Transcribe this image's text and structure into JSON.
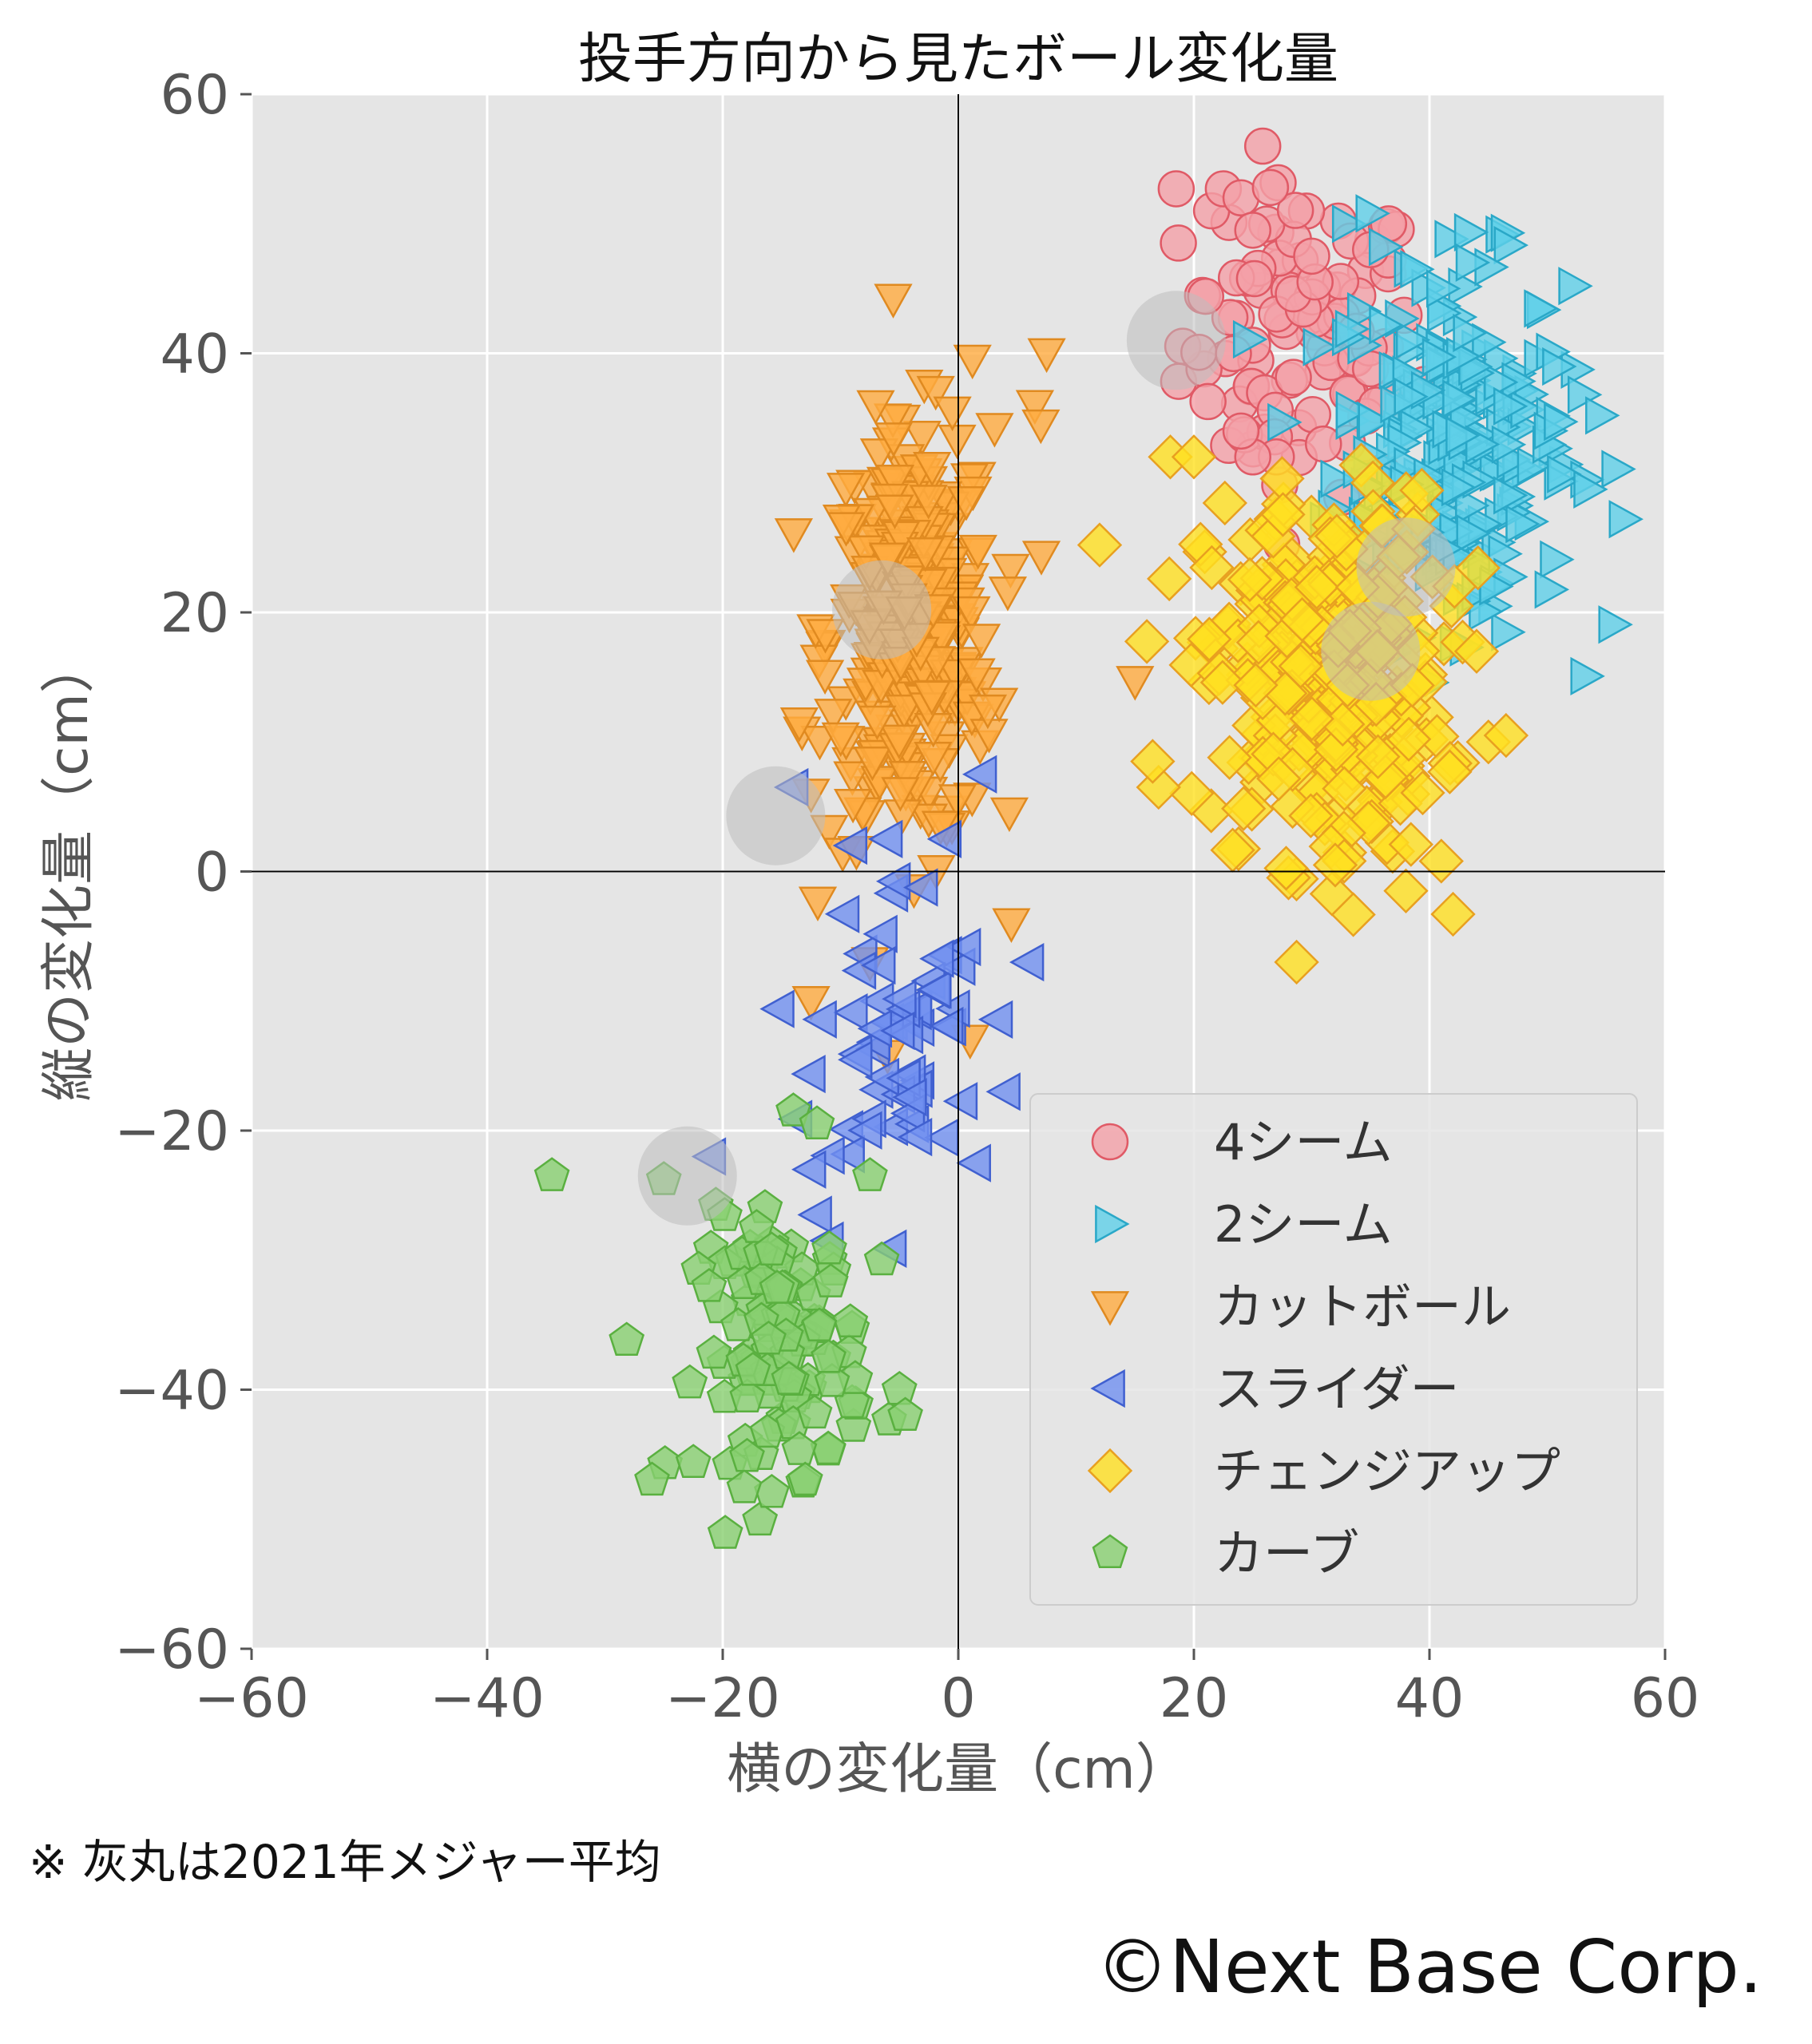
{
  "chart_data": {
    "type": "scatter",
    "title": "投手方向から見たボール変化量",
    "xlabel": "横の変化量（cm）",
    "ylabel": "縦の変化量（cm）",
    "xlim": [
      -60,
      60
    ],
    "ylim": [
      -60,
      60
    ],
    "xticks": [
      -60,
      -40,
      -20,
      0,
      20,
      40,
      60
    ],
    "yticks": [
      60,
      40,
      20,
      0,
      -20,
      -40,
      -60
    ],
    "xtick_labels": [
      "−60",
      "−40",
      "−20",
      "0",
      "20",
      "40",
      "60"
    ],
    "ytick_labels": [
      "60",
      "40",
      "20",
      "0",
      "−20",
      "−40",
      "−60"
    ],
    "grid": true,
    "background": "#e5e5e5",
    "legend_position": "lower-right",
    "series": [
      {
        "name": "4シーム",
        "marker": "circle",
        "fill": "#f4a0a8",
        "stroke": "#e05a66",
        "n": 90,
        "center": [
          29,
          41
        ],
        "spread": [
          5,
          6
        ],
        "points": [
          [
            18.5,
            52.7
          ],
          [
            21.5,
            51
          ],
          [
            22.5,
            52.7
          ],
          [
            24,
            52
          ],
          [
            26.5,
            52.8
          ],
          [
            25,
            49.5
          ],
          [
            30,
            47.5
          ],
          [
            36.5,
            47.2
          ],
          [
            35,
            48
          ],
          [
            21,
            44.4
          ],
          [
            31,
            33
          ],
          [
            35.5,
            36
          ],
          [
            36,
            30.8
          ],
          [
            27,
            32
          ],
          [
            25,
            32
          ],
          [
            24,
            34
          ]
        ]
      },
      {
        "name": "2シーム",
        "marker": "triangle-right",
        "fill": "#5fd0e8",
        "stroke": "#2aa8c8",
        "n": 230,
        "center": [
          42,
          33
        ],
        "spread": [
          5,
          7
        ],
        "points": [
          [
            33,
            50
          ],
          [
            35,
            50.8
          ],
          [
            43.5,
            47
          ],
          [
            41,
            45
          ],
          [
            53,
            36.8
          ],
          [
            54.5,
            35.2
          ],
          [
            53.5,
            29.5
          ],
          [
            56.5,
            27.2
          ],
          [
            44,
            21.5
          ],
          [
            45.5,
            22
          ],
          [
            43,
            17.3
          ]
        ]
      },
      {
        "name": "カットボール",
        "marker": "triangle-down",
        "fill": "#ffab40",
        "stroke": "#e08a20",
        "n": 330,
        "center": [
          -4,
          18
        ],
        "spread": [
          3.5,
          8
        ],
        "points": [
          [
            1.2,
            39.5
          ],
          [
            7.5,
            40
          ],
          [
            -0.5,
            35.5
          ],
          [
            6.5,
            36
          ],
          [
            7,
            34.5
          ],
          [
            -5.5,
            33.5
          ],
          [
            -13.5,
            11.5
          ],
          [
            -12.5,
            6
          ],
          [
            2.5,
            12.5
          ],
          [
            15,
            14.7
          ],
          [
            4.5,
            -4
          ],
          [
            -12.5,
            -10
          ],
          [
            -7.5,
            -7
          ],
          [
            1,
            -13
          ]
        ]
      },
      {
        "name": "スライダー",
        "marker": "triangle-left",
        "fill": "#7090f0",
        "stroke": "#4060d0",
        "n": 60,
        "center": [
          -5,
          -12
        ],
        "spread": [
          3.5,
          6
        ],
        "points": [
          [
            -14,
            6.5
          ],
          [
            -9,
            2
          ],
          [
            -6,
            2.5
          ],
          [
            -1,
            2.5
          ],
          [
            2,
            7.5
          ],
          [
            6,
            -7
          ],
          [
            4,
            -17
          ],
          [
            1.5,
            -22.5
          ],
          [
            -21,
            -22
          ],
          [
            -12,
            -26.5
          ],
          [
            -11,
            -28.5
          ],
          [
            -12.5,
            -23
          ],
          [
            -3.5,
            -20.5
          ]
        ]
      },
      {
        "name": "チェンジアップ",
        "marker": "diamond",
        "fill": "#ffe020",
        "stroke": "#e8a020",
        "n": 300,
        "center": [
          31,
          15
        ],
        "spread": [
          5,
          7
        ],
        "points": [
          [
            12,
            25.2
          ],
          [
            18,
            32
          ],
          [
            20,
            32
          ],
          [
            17,
            6.5
          ],
          [
            16.5,
            8.5
          ],
          [
            32,
            0.5
          ],
          [
            38,
            -1.5
          ],
          [
            42,
            -3.3
          ],
          [
            41,
            0.8
          ],
          [
            45,
            10
          ],
          [
            46.5,
            10.5
          ],
          [
            44,
            17
          ]
        ]
      },
      {
        "name": "カーブ",
        "marker": "pentagon",
        "fill": "#88d070",
        "stroke": "#5ab040",
        "n": 110,
        "center": [
          -15,
          -37
        ],
        "spread": [
          3.5,
          5
        ],
        "points": [
          [
            -34.5,
            -23.5
          ],
          [
            -25,
            -23.8
          ],
          [
            -14,
            -18.5
          ],
          [
            -12,
            -19.5
          ],
          [
            -7.5,
            -23.5
          ],
          [
            -6.5,
            -30
          ],
          [
            -26,
            -47
          ],
          [
            -13,
            -47
          ],
          [
            -5,
            -40
          ],
          [
            -4.5,
            -42
          ]
        ]
      }
    ],
    "league_averages": [
      [
        18.5,
        41
      ],
      [
        38,
        23.5
      ],
      [
        35,
        17
      ],
      [
        -6.5,
        20.2
      ],
      [
        -15.5,
        4.3
      ],
      [
        -23,
        -23.5
      ]
    ]
  },
  "footnote": "※ 灰丸は2021年メジャー平均",
  "copyright": "©Next Base Corp."
}
